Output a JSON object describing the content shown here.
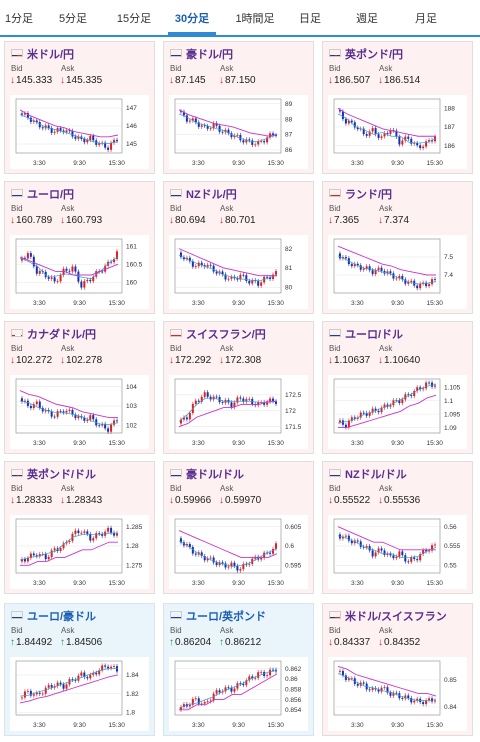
{
  "tabs": [
    {
      "label": "1分足",
      "active": false
    },
    {
      "label": "5分足",
      "active": false
    },
    {
      "label": "15分足",
      "active": false
    },
    {
      "label": "30分足",
      "active": true
    },
    {
      "label": "1時間足",
      "active": false
    },
    {
      "label": "日足",
      "active": false
    },
    {
      "label": "週足",
      "active": false
    },
    {
      "label": "月足",
      "active": false
    }
  ],
  "labels": {
    "bid": "Bid",
    "ask": "Ask"
  },
  "colors": {
    "bull": "#e02020",
    "bear": "#1a2fb0",
    "ma_short": "#2f9fd8",
    "ma_long": "#cc33cc",
    "up": "#1a9a3a",
    "down": "#dd2222"
  },
  "pairs": [
    {
      "name": "米ドル/円",
      "flag": "us-jp",
      "bid": "145.333",
      "ask": "145.335",
      "direction": "down",
      "theme": "pink",
      "chart_data": {
        "type": "candlestick",
        "x_ticks": [
          "3:30",
          "9:30",
          "15:30"
        ],
        "y_ticks": [
          "147",
          "146",
          "145"
        ],
        "ylim": [
          144.5,
          147.5
        ],
        "trend": [
          146.7,
          146.5,
          146.1,
          145.9,
          145.7,
          145.8,
          145.5,
          145.2,
          145.3,
          145.0,
          144.8,
          145.3
        ],
        "ma": [
          146.9,
          146.6,
          146.4,
          146.2,
          146.0,
          145.9,
          145.7,
          145.6,
          145.5,
          145.4,
          145.4,
          145.5
        ]
      }
    },
    {
      "name": "豪ドル/円",
      "flag": "au-jp",
      "bid": "87.145",
      "ask": "87.150",
      "direction": "down",
      "theme": "pink",
      "chart_data": {
        "type": "candlestick",
        "x_ticks": [
          "3:30",
          "9:30",
          "15:30"
        ],
        "y_ticks": [
          "89",
          "88",
          "87",
          "86"
        ],
        "ylim": [
          85.8,
          89.3
        ],
        "trend": [
          88.5,
          88.0,
          87.8,
          87.4,
          87.6,
          87.2,
          87.0,
          86.7,
          86.5,
          86.4,
          86.8,
          87.1
        ],
        "ma": [
          88.6,
          88.3,
          88.1,
          87.9,
          87.7,
          87.6,
          87.5,
          87.3,
          87.1,
          87.0,
          86.9,
          87.0
        ]
      }
    },
    {
      "name": "英ポンド/円",
      "flag": "gb-jp",
      "bid": "186.507",
      "ask": "186.514",
      "direction": "down",
      "theme": "pink",
      "chart_data": {
        "type": "candlestick",
        "x_ticks": [
          "3:30",
          "9:30",
          "15:30"
        ],
        "y_ticks": [
          "188",
          "187",
          "186"
        ],
        "ylim": [
          185.6,
          188.5
        ],
        "trend": [
          187.9,
          187.3,
          187.1,
          186.6,
          186.8,
          186.4,
          186.9,
          186.2,
          186.4,
          185.9,
          186.1,
          186.5
        ],
        "ma": [
          188.0,
          187.7,
          187.5,
          187.3,
          187.1,
          186.9,
          186.8,
          186.7,
          186.6,
          186.5,
          186.5,
          186.5
        ]
      }
    },
    {
      "name": "ユーロ/円",
      "flag": "eu-jp",
      "bid": "160.789",
      "ask": "160.793",
      "direction": "down",
      "theme": "pink",
      "chart_data": {
        "type": "candlestick",
        "x_ticks": [
          "3:30",
          "9:30",
          "15:30"
        ],
        "y_ticks": [
          "161",
          "160.5",
          "160"
        ],
        "ylim": [
          159.7,
          161.2
        ],
        "trend": [
          160.6,
          160.8,
          160.3,
          160.2,
          160.0,
          160.3,
          160.4,
          159.9,
          160.1,
          160.3,
          160.5,
          160.8
        ],
        "ma": [
          160.7,
          160.6,
          160.5,
          160.4,
          160.3,
          160.3,
          160.2,
          160.2,
          160.2,
          160.3,
          160.4,
          160.5
        ]
      }
    },
    {
      "name": "NZドル/円",
      "flag": "nz-jp",
      "bid": "80.694",
      "ask": "80.701",
      "direction": "down",
      "theme": "pink",
      "chart_data": {
        "type": "candlestick",
        "x_ticks": [
          "3:30",
          "9:30",
          "15:30"
        ],
        "y_ticks": [
          "82",
          "81",
          "80"
        ],
        "ylim": [
          79.7,
          82.5
        ],
        "trend": [
          81.8,
          81.4,
          81.1,
          81.2,
          80.9,
          80.6,
          80.4,
          80.6,
          80.3,
          80.2,
          80.5,
          80.7
        ],
        "ma": [
          82.0,
          81.8,
          81.6,
          81.4,
          81.2,
          81.0,
          80.9,
          80.8,
          80.7,
          80.6,
          80.6,
          80.6
        ]
      }
    },
    {
      "name": "ランド/円",
      "flag": "za-jp",
      "bid": "7.365",
      "ask": "7.374",
      "direction": "down",
      "theme": "pink",
      "chart_data": {
        "type": "candlestick",
        "x_ticks": [
          "3:30",
          "9:30",
          "15:30"
        ],
        "y_ticks": [
          "7.5",
          "7.4"
        ],
        "ylim": [
          7.3,
          7.6
        ],
        "trend": [
          7.52,
          7.48,
          7.45,
          7.44,
          7.42,
          7.43,
          7.4,
          7.38,
          7.36,
          7.34,
          7.35,
          7.37
        ],
        "ma": [
          7.56,
          7.54,
          7.52,
          7.5,
          7.48,
          7.46,
          7.45,
          7.43,
          7.42,
          7.41,
          7.4,
          7.4
        ]
      }
    },
    {
      "name": "カナダドル/円",
      "flag": "ca-jp",
      "bid": "102.272",
      "ask": "102.278",
      "direction": "down",
      "theme": "pink",
      "chart_data": {
        "type": "candlestick",
        "x_ticks": [
          "3:30",
          "9:30",
          "15:30"
        ],
        "y_ticks": [
          "104",
          "103",
          "102"
        ],
        "ylim": [
          101.6,
          104.4
        ],
        "trend": [
          103.4,
          103.0,
          103.1,
          102.7,
          102.5,
          102.8,
          102.6,
          102.3,
          102.4,
          102.0,
          101.8,
          102.3
        ],
        "ma": [
          103.8,
          103.6,
          103.5,
          103.3,
          103.1,
          103.0,
          102.9,
          102.7,
          102.6,
          102.5,
          102.4,
          102.4
        ]
      }
    },
    {
      "name": "スイスフラン/円",
      "flag": "ch-jp",
      "bid": "172.292",
      "ask": "172.308",
      "direction": "down",
      "theme": "pink",
      "chart_data": {
        "type": "candlestick",
        "x_ticks": [
          "3:30",
          "9:30",
          "15:30"
        ],
        "y_ticks": [
          "172.5",
          "172",
          "171.5"
        ],
        "ylim": [
          171.3,
          173.0
        ],
        "trend": [
          171.6,
          171.8,
          172.3,
          172.5,
          172.4,
          172.3,
          172.2,
          172.4,
          172.3,
          172.2,
          172.3,
          172.3
        ],
        "ma": [
          171.5,
          171.6,
          171.8,
          171.9,
          172.0,
          172.1,
          172.1,
          172.2,
          172.2,
          172.2,
          172.3,
          172.3
        ]
      }
    },
    {
      "name": "ユーロ/ドル",
      "flag": "eu-us",
      "bid": "1.10637",
      "ask": "1.10640",
      "direction": "down",
      "theme": "pink",
      "chart_data": {
        "type": "candlestick",
        "x_ticks": [
          "3:30",
          "9:30",
          "15:30"
        ],
        "y_ticks": [
          "1.105",
          "1.1",
          "1.095",
          "1.09"
        ],
        "ylim": [
          1.088,
          1.108
        ],
        "trend": [
          1.092,
          1.091,
          1.094,
          1.095,
          1.096,
          1.097,
          1.099,
          1.1,
          1.102,
          1.104,
          1.106,
          1.106
        ],
        "ma": [
          1.09,
          1.09,
          1.091,
          1.092,
          1.093,
          1.094,
          1.095,
          1.096,
          1.098,
          1.099,
          1.101,
          1.102
        ]
      }
    },
    {
      "name": "英ポンド/ドル",
      "flag": "gb-us",
      "bid": "1.28333",
      "ask": "1.28343",
      "direction": "down",
      "theme": "pink",
      "chart_data": {
        "type": "candlestick",
        "x_ticks": [
          "3:30",
          "9:30",
          "15:30"
        ],
        "y_ticks": [
          "1.285",
          "1.28",
          "1.275"
        ],
        "ylim": [
          1.273,
          1.287
        ],
        "trend": [
          1.276,
          1.277,
          1.278,
          1.277,
          1.279,
          1.28,
          1.283,
          1.284,
          1.282,
          1.283,
          1.284,
          1.283
        ],
        "ma": [
          1.275,
          1.275,
          1.276,
          1.276,
          1.277,
          1.277,
          1.278,
          1.279,
          1.279,
          1.28,
          1.281,
          1.281
        ]
      }
    },
    {
      "name": "豪ドル/ドル",
      "flag": "au-us",
      "bid": "0.59966",
      "ask": "0.59970",
      "direction": "down",
      "theme": "pink",
      "chart_data": {
        "type": "candlestick",
        "x_ticks": [
          "3:30",
          "9:30",
          "15:30"
        ],
        "y_ticks": [
          "0.605",
          "0.6",
          "0.595"
        ],
        "ylim": [
          0.593,
          0.607
        ],
        "trend": [
          0.602,
          0.6,
          0.598,
          0.597,
          0.596,
          0.595,
          0.595,
          0.594,
          0.596,
          0.597,
          0.598,
          0.6
        ],
        "ma": [
          0.604,
          0.603,
          0.602,
          0.601,
          0.6,
          0.599,
          0.598,
          0.597,
          0.597,
          0.597,
          0.597,
          0.598
        ]
      }
    },
    {
      "name": "NZドル/ドル",
      "flag": "nz-us",
      "bid": "0.55522",
      "ask": "0.55536",
      "direction": "down",
      "theme": "pink",
      "chart_data": {
        "type": "candlestick",
        "x_ticks": [
          "3:30",
          "9:30",
          "15:30"
        ],
        "y_ticks": [
          "0.56",
          "0.555",
          "0.55"
        ],
        "ylim": [
          0.548,
          0.562
        ],
        "trend": [
          0.558,
          0.557,
          0.556,
          0.555,
          0.553,
          0.554,
          0.552,
          0.553,
          0.551,
          0.552,
          0.554,
          0.555
        ],
        "ma": [
          0.56,
          0.559,
          0.558,
          0.557,
          0.556,
          0.556,
          0.555,
          0.554,
          0.554,
          0.554,
          0.554,
          0.554
        ]
      }
    },
    {
      "name": "ユーロ/豪ドル",
      "flag": "eu-au",
      "bid": "1.84492",
      "ask": "1.84506",
      "direction": "up",
      "theme": "blue",
      "chart_data": {
        "type": "candlestick",
        "x_ticks": [
          "3:30",
          "9:30",
          "15:30"
        ],
        "y_ticks": [
          "1.84",
          "1.82",
          "1.8"
        ],
        "ylim": [
          1.797,
          1.855
        ],
        "trend": [
          1.815,
          1.822,
          1.818,
          1.825,
          1.83,
          1.828,
          1.835,
          1.84,
          1.838,
          1.846,
          1.85,
          1.845
        ],
        "ma": [
          1.81,
          1.812,
          1.815,
          1.817,
          1.82,
          1.823,
          1.826,
          1.829,
          1.832,
          1.835,
          1.838,
          1.84
        ]
      }
    },
    {
      "name": "ユーロ/英ポンド",
      "flag": "eu-gb",
      "bid": "0.86204",
      "ask": "0.86212",
      "direction": "up",
      "theme": "blue",
      "chart_data": {
        "type": "candlestick",
        "x_ticks": [
          "3:30",
          "9:30",
          "15:30"
        ],
        "y_ticks": [
          "0.862",
          "0.86",
          "0.858",
          "0.856",
          "0.854"
        ],
        "ylim": [
          0.853,
          0.8635
        ],
        "trend": [
          0.854,
          0.855,
          0.856,
          0.855,
          0.857,
          0.858,
          0.858,
          0.859,
          0.86,
          0.861,
          0.861,
          0.862
        ],
        "ma": [
          0.854,
          0.854,
          0.855,
          0.855,
          0.856,
          0.856,
          0.857,
          0.857,
          0.858,
          0.859,
          0.86,
          0.861
        ]
      }
    },
    {
      "name": "米ドル/スイスフラン",
      "flag": "us-ch",
      "bid": "0.84337",
      "ask": "0.84352",
      "direction": "down",
      "theme": "pink",
      "chart_data": {
        "type": "candlestick",
        "x_ticks": [
          "3:30",
          "9:30",
          "15:30"
        ],
        "y_ticks": [
          "0.85",
          "0.84"
        ],
        "ylim": [
          0.837,
          0.857
        ],
        "trend": [
          0.853,
          0.851,
          0.849,
          0.848,
          0.846,
          0.847,
          0.845,
          0.844,
          0.843,
          0.842,
          0.842,
          0.843
        ],
        "ma": [
          0.855,
          0.854,
          0.852,
          0.851,
          0.85,
          0.849,
          0.848,
          0.847,
          0.846,
          0.845,
          0.845,
          0.844
        ]
      }
    }
  ]
}
